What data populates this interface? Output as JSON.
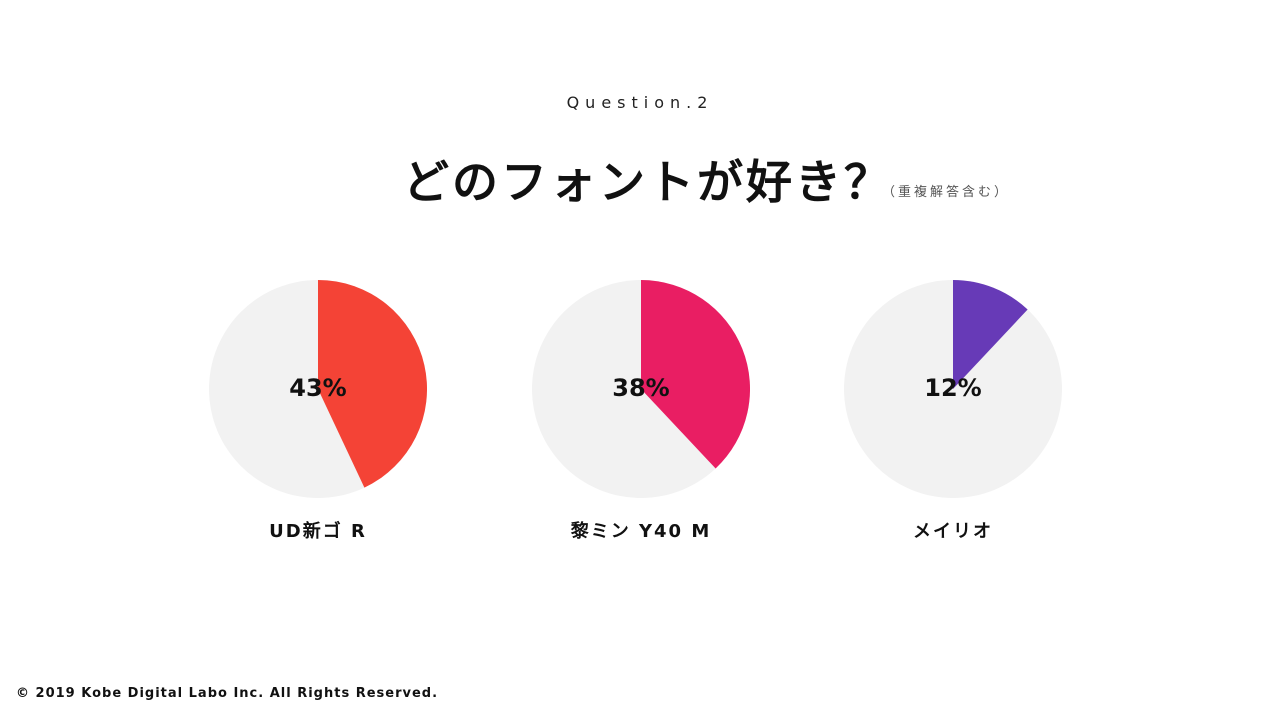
{
  "header": {
    "question_label": "Question.2",
    "title": "どのフォントが好き？",
    "subtitle": "（重複解答含む）"
  },
  "chart_data": [
    {
      "type": "pie",
      "category": "UD新ゴ R",
      "value": 43,
      "value_label": "43%",
      "color": "#f44336",
      "background_color": "#f2f2f2"
    },
    {
      "type": "pie",
      "category": "黎ミン Y40 M",
      "value": 38,
      "value_label": "38%",
      "color": "#e91e63",
      "background_color": "#f2f2f2"
    },
    {
      "type": "pie",
      "category": "メイリオ",
      "value": 12,
      "value_label": "12%",
      "color": "#673ab7",
      "background_color": "#f2f2f2"
    }
  ],
  "footer": {
    "copyright": "© 2019 Kobe Digital Labo Inc. All Rights Reserved."
  }
}
